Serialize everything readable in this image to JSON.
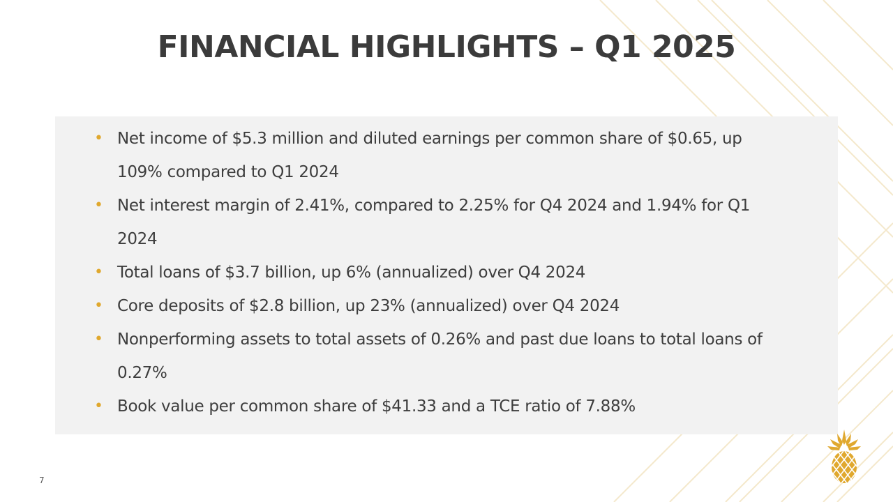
{
  "slide": {
    "title": "FINANCIAL HIGHLIGHTS – Q1 2025",
    "page_number": "7"
  },
  "highlights": [
    "Net income of $5.3 million and diluted earnings per common share of $0.65, up 109% compared to Q1 2024",
    "Net interest margin of 2.41%, compared to 2.25% for Q4 2024 and 1.94% for Q1 2024",
    "Total loans of $3.7 billion, up 6% (annualized) over Q4 2024",
    "Core deposits of $2.8 billion, up 23% (annualized) over Q4 2024",
    "Nonperforming assets to total assets of 0.26% and past due loans to total loans of 0.27%",
    "Book value per common share of $41.33 and a TCE ratio of 7.88%"
  ],
  "bullet_symbol": "•",
  "logo": {
    "icon": "pineapple-icon"
  },
  "colors": {
    "accent_gold": "#e0a82e",
    "title_text": "#3b3b3b",
    "body_text": "#3d3d3d",
    "panel_background": "#f2f2f2",
    "pattern_line": "#f3e6c6"
  }
}
